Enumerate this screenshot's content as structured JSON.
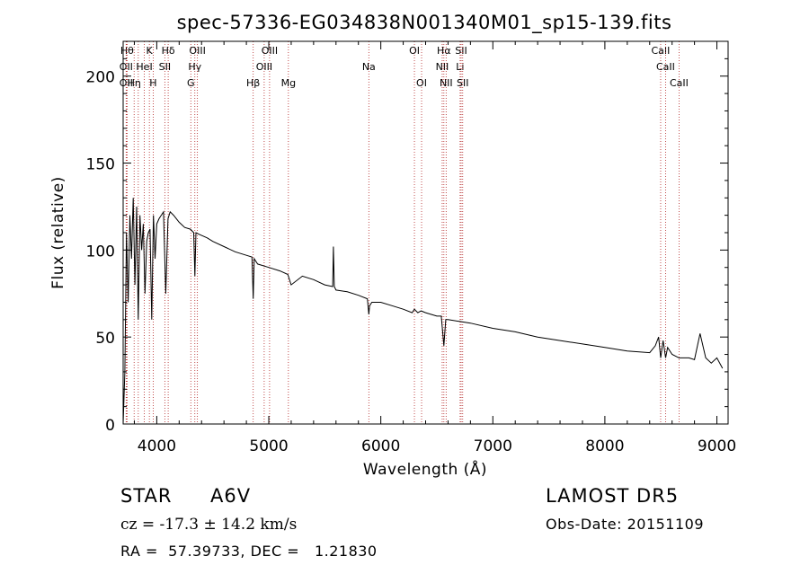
{
  "chart_data": {
    "type": "line",
    "title": "spec-57336-EG034838N001340M01_sp15-139.fits",
    "xlabel": "Wavelength (Å)",
    "ylabel": "Flux (relative)",
    "xlim": [
      3700,
      9100
    ],
    "ylim": [
      0,
      220
    ],
    "x_ticks": [
      4000,
      5000,
      6000,
      7000,
      8000,
      9000
    ],
    "y_ticks": [
      0,
      50,
      100,
      150,
      200
    ],
    "grid": false,
    "legend": "none",
    "line_color": "#000000",
    "marker_color": "#b22222",
    "series": [
      {
        "x": [
          3700,
          3715,
          3730,
          3745,
          3760,
          3775,
          3790,
          3805,
          3820,
          3835,
          3850,
          3865,
          3880,
          3895,
          3910,
          3925,
          3940,
          3955,
          3970,
          3985,
          4000,
          4020,
          4040,
          4060,
          4080,
          4100,
          4120,
          4150,
          4200,
          4250,
          4300,
          4330,
          4340,
          4350,
          4380,
          4450,
          4500,
          4600,
          4700,
          4800,
          4850,
          4861,
          4870,
          4900,
          5000,
          5100,
          5170,
          5200,
          5300,
          5400,
          5500,
          5570,
          5577,
          5585,
          5600,
          5700,
          5800,
          5880,
          5893,
          5900,
          5920,
          6000,
          6100,
          6200,
          6280,
          6300,
          6330,
          6360,
          6400,
          6500,
          6540,
          6563,
          6580,
          6600,
          6700,
          6800,
          7000,
          7200,
          7400,
          7600,
          7800,
          8000,
          8200,
          8400,
          8450,
          8480,
          8498,
          8520,
          8542,
          8560,
          8600,
          8662,
          8700,
          8750,
          8800,
          8850,
          8900,
          8950,
          9000,
          9050
        ],
        "y": [
          0,
          30,
          110,
          70,
          120,
          95,
          130,
          80,
          125,
          60,
          120,
          100,
          115,
          75,
          105,
          110,
          112,
          60,
          120,
          95,
          115,
          118,
          120,
          122,
          75,
          118,
          122,
          120,
          116,
          113,
          112,
          110,
          85,
          110,
          109,
          107,
          105,
          102,
          99,
          97,
          96,
          72,
          95,
          92,
          90,
          88,
          86,
          80,
          85,
          83,
          80,
          79,
          102,
          79,
          77,
          76,
          74,
          72,
          63,
          68,
          70,
          70,
          68,
          66,
          64,
          66,
          64,
          65,
          64,
          62,
          62,
          45,
          60,
          60,
          59,
          58,
          55,
          53,
          50,
          48,
          46,
          44,
          42,
          41,
          45,
          50,
          38,
          48,
          38,
          44,
          40,
          38,
          38,
          38,
          37,
          52,
          38,
          35,
          38,
          32
        ]
      }
    ],
    "line_markers": [
      {
        "x": 3735,
        "label": "Hθ",
        "row": 0
      },
      {
        "x": 3727,
        "label": "OII",
        "row": 1
      },
      {
        "x": 3727,
        "label": "OII",
        "row": 2
      },
      {
        "x": 3798,
        "label": "Hη",
        "row": 2
      },
      {
        "x": 3835,
        "label": "",
        "row": -1
      },
      {
        "x": 3889,
        "label": "HeI",
        "row": 1
      },
      {
        "x": 3934,
        "label": "K",
        "row": 0
      },
      {
        "x": 3968,
        "label": "H",
        "row": 2
      },
      {
        "x": 4072,
        "label": "SII",
        "row": 1
      },
      {
        "x": 4102,
        "label": "Hδ",
        "row": 0
      },
      {
        "x": 4304,
        "label": "G",
        "row": 2
      },
      {
        "x": 4340,
        "label": "Hγ",
        "row": 1
      },
      {
        "x": 4363,
        "label": "OIII",
        "row": 0
      },
      {
        "x": 4861,
        "label": "Hβ",
        "row": 2
      },
      {
        "x": 4959,
        "label": "OIII",
        "row": 1
      },
      {
        "x": 5007,
        "label": "OIII",
        "row": 0
      },
      {
        "x": 5175,
        "label": "Mg",
        "row": 2
      },
      {
        "x": 5893,
        "label": "Na",
        "row": 1
      },
      {
        "x": 6300,
        "label": "OI",
        "row": 0
      },
      {
        "x": 6364,
        "label": "OI",
        "row": 2
      },
      {
        "x": 6548,
        "label": "NII",
        "row": 1
      },
      {
        "x": 6563,
        "label": "Hα",
        "row": 0
      },
      {
        "x": 6583,
        "label": "NII",
        "row": 2
      },
      {
        "x": 6708,
        "label": "Li",
        "row": 1
      },
      {
        "x": 6717,
        "label": "SII",
        "row": 0
      },
      {
        "x": 6731,
        "label": "SII",
        "row": 2
      },
      {
        "x": 8498,
        "label": "CaII",
        "row": 0
      },
      {
        "x": 8542,
        "label": "CaII",
        "row": 1
      },
      {
        "x": 8662,
        "label": "CaII",
        "row": 2
      }
    ]
  },
  "info": {
    "object_class": "STAR",
    "subclass": "A6V",
    "survey": "LAMOST DR5",
    "redshift": "cz = -17.3 ± 14.2 km/s",
    "obs_date": "Obs-Date: 20151109",
    "coords": "RA =  57.39733, DEC =   1.21830"
  }
}
